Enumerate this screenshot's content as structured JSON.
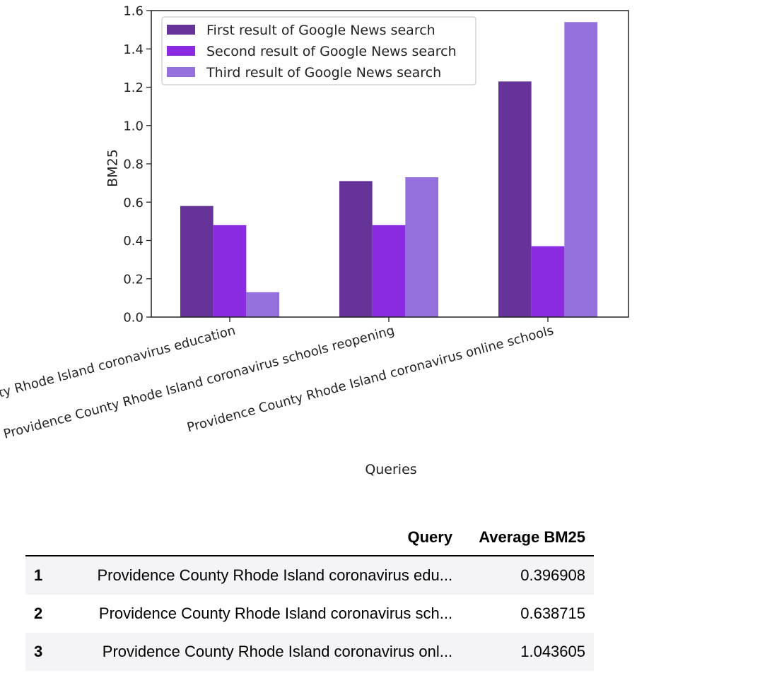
{
  "colors": {
    "series": [
      "#663399",
      "#8a2be2",
      "#9370db"
    ],
    "axis": "#222222",
    "legend_border": "#cccccc"
  },
  "chart_data": {
    "type": "bar",
    "title": "",
    "xlabel": "Queries",
    "ylabel": "BM25",
    "ylim": [
      0,
      1.6
    ],
    "yticks": [
      "0.0",
      "0.2",
      "0.4",
      "0.6",
      "0.8",
      "1.0",
      "1.2",
      "1.4",
      "1.6"
    ],
    "categories": [
      "Providence County Rhode Island coronavirus education",
      "Providence County Rhode Island coronavirus schools reopening",
      "Providence County Rhode Island coronavirus online schools"
    ],
    "series": [
      {
        "name": "First result of Google News search",
        "values": [
          0.58,
          0.71,
          1.23
        ]
      },
      {
        "name": "Second result of Google News search",
        "values": [
          0.48,
          0.48,
          0.37
        ]
      },
      {
        "name": "Third result of Google News search",
        "values": [
          0.13,
          0.73,
          1.54
        ]
      }
    ],
    "legend_position": "upper-left",
    "grid": false
  },
  "table": {
    "headers": {
      "index": "",
      "query": "Query",
      "average": "Average BM25"
    },
    "rows": [
      {
        "index": "1",
        "query": "Providence County Rhode Island coronavirus edu...",
        "average": "0.396908"
      },
      {
        "index": "2",
        "query": "Providence County Rhode Island coronavirus sch...",
        "average": "0.638715"
      },
      {
        "index": "3",
        "query": "Providence County Rhode Island coronavirus onl...",
        "average": "1.043605"
      }
    ]
  }
}
